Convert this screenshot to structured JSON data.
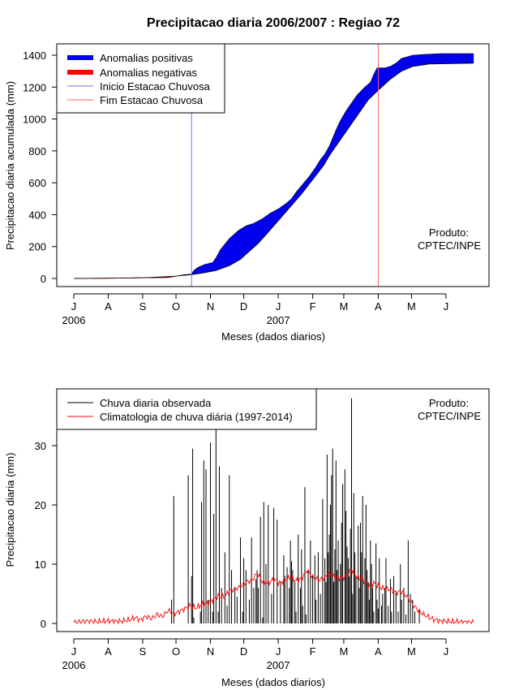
{
  "title": "Precipitacao diaria 2006/2007 : Regiao 72",
  "chart_data": [
    {
      "type": "area",
      "title": "Precipitacao diaria 2006/2007 : Regiao 72",
      "xlabel": "Meses (dados diarios)",
      "ylabel": "Precipitacao diaria acumulada (mm)",
      "ylim": [
        0,
        1440
      ],
      "yticks": [
        0,
        200,
        400,
        600,
        800,
        1000,
        1200,
        1400
      ],
      "month_ticks": [
        "J",
        "A",
        "S",
        "O",
        "N",
        "D",
        "J",
        "F",
        "M",
        "A",
        "M",
        "J"
      ],
      "year_labels": [
        "2006",
        "2007"
      ],
      "grid": false,
      "legend_position": "top-left",
      "legend": [
        "Anomalias positivas",
        "Anomalias negativas",
        "Inicio Estacao Chuvosa",
        "Fim Estacao Chuvosa"
      ],
      "annotation": [
        "Produto:",
        "CPTEC/INPE"
      ],
      "colors": {
        "positive": "#0000ee",
        "negative": "#ff0000",
        "onset": "#6f6fff",
        "end": "#ff5a5a"
      },
      "onset_day": 106,
      "end_day": 274,
      "series": [
        {
          "name": "observada",
          "points": [
            [
              0,
              0
            ],
            [
              30,
              1
            ],
            [
              60,
              4
            ],
            [
              85,
              6
            ],
            [
              90,
              12
            ],
            [
              100,
              24
            ],
            [
              106,
              27
            ],
            [
              108,
              50
            ],
            [
              112,
              70
            ],
            [
              118,
              88
            ],
            [
              125,
              100
            ],
            [
              128,
              130
            ],
            [
              132,
              180
            ],
            [
              140,
              250
            ],
            [
              148,
              300
            ],
            [
              155,
              330
            ],
            [
              162,
              345
            ],
            [
              170,
              375
            ],
            [
              177,
              410
            ],
            [
              185,
              440
            ],
            [
              192,
              475
            ],
            [
              196,
              500
            ],
            [
              200,
              540
            ],
            [
              206,
              590
            ],
            [
              212,
              640
            ],
            [
              218,
              700
            ],
            [
              222,
              745
            ],
            [
              226,
              780
            ],
            [
              230,
              830
            ],
            [
              236,
              930
            ],
            [
              240,
              990
            ],
            [
              245,
              1050
            ],
            [
              250,
              1100
            ],
            [
              255,
              1150
            ],
            [
              262,
              1200
            ],
            [
              267,
              1230
            ],
            [
              270,
              1280
            ],
            [
              273,
              1320
            ],
            [
              280,
              1320
            ],
            [
              285,
              1330
            ],
            [
              290,
              1350
            ],
            [
              295,
              1380
            ],
            [
              300,
              1390
            ],
            [
              305,
              1400
            ],
            [
              315,
              1405
            ],
            [
              330,
              1410
            ],
            [
              360,
              1410
            ]
          ]
        },
        {
          "name": "climatologia",
          "points": [
            [
              0,
              0
            ],
            [
              40,
              2
            ],
            [
              65,
              5
            ],
            [
              90,
              13
            ],
            [
              106,
              24
            ],
            [
              118,
              36
            ],
            [
              128,
              50
            ],
            [
              140,
              80
            ],
            [
              150,
              120
            ],
            [
              158,
              170
            ],
            [
              166,
              220
            ],
            [
              175,
              290
            ],
            [
              185,
              370
            ],
            [
              195,
              450
            ],
            [
              205,
              530
            ],
            [
              215,
              620
            ],
            [
              225,
              710
            ],
            [
              230,
              770
            ],
            [
              240,
              870
            ],
            [
              250,
              970
            ],
            [
              258,
              1050
            ],
            [
              265,
              1120
            ],
            [
              274,
              1180
            ],
            [
              285,
              1250
            ],
            [
              295,
              1300
            ],
            [
              305,
              1330
            ],
            [
              320,
              1345
            ],
            [
              360,
              1350
            ]
          ]
        }
      ]
    },
    {
      "type": "bar",
      "xlabel": "Meses (dados diarios)",
      "ylabel": "Precipitacao diaria (mm)",
      "ylim": [
        0,
        38
      ],
      "yticks": [
        0,
        10,
        20,
        30
      ],
      "month_ticks": [
        "J",
        "A",
        "S",
        "O",
        "N",
        "D",
        "J",
        "F",
        "M",
        "A",
        "M",
        "J"
      ],
      "year_labels": [
        "2006",
        "2007"
      ],
      "grid": false,
      "legend_position": "top-left",
      "legend": [
        "Chuva diaria observada",
        "Climatologia de chuva diária (1997-2014)"
      ],
      "annotation": [
        "Produto:",
        "CPTEC/INPE"
      ],
      "colors": {
        "observed": "#000000",
        "climatology": "#ff0000"
      },
      "observed": [
        [
          88,
          4
        ],
        [
          90,
          21.5
        ],
        [
          103,
          25
        ],
        [
          106,
          8
        ],
        [
          107,
          29.5
        ],
        [
          108,
          1
        ],
        [
          114,
          2
        ],
        [
          115,
          20.5
        ],
        [
          117,
          27.5
        ],
        [
          119,
          26
        ],
        [
          121,
          4
        ],
        [
          123,
          30.5
        ],
        [
          125,
          2
        ],
        [
          126,
          18.5
        ],
        [
          128,
          33
        ],
        [
          130,
          2
        ],
        [
          131,
          26.5
        ],
        [
          133,
          6
        ],
        [
          136,
          12
        ],
        [
          138,
          3
        ],
        [
          140,
          25
        ],
        [
          142,
          9
        ],
        [
          145,
          6
        ],
        [
          147,
          4.5
        ],
        [
          150,
          14.5
        ],
        [
          152,
          2
        ],
        [
          153,
          11
        ],
        [
          155,
          9
        ],
        [
          158,
          4
        ],
        [
          160,
          14.5
        ],
        [
          162,
          6
        ],
        [
          164,
          7.5
        ],
        [
          165,
          9
        ],
        [
          166,
          6
        ],
        [
          168,
          18
        ],
        [
          170,
          1
        ],
        [
          171,
          20.5
        ],
        [
          173,
          10
        ],
        [
          175,
          20
        ],
        [
          178,
          5
        ],
        [
          180,
          19.5
        ],
        [
          183,
          17.5
        ],
        [
          186,
          7
        ],
        [
          189,
          11.5
        ],
        [
          190,
          8
        ],
        [
          192,
          9.5
        ],
        [
          194,
          6
        ],
        [
          195,
          14
        ],
        [
          196,
          10.5
        ],
        [
          197,
          9
        ],
        [
          199,
          7
        ],
        [
          200,
          2
        ],
        [
          202,
          15
        ],
        [
          204,
          6
        ],
        [
          205,
          12.5
        ],
        [
          206,
          3
        ],
        [
          208,
          23
        ],
        [
          209,
          1.5
        ],
        [
          211,
          9
        ],
        [
          213,
          14
        ],
        [
          215,
          8
        ],
        [
          217,
          11.5
        ],
        [
          218,
          4
        ],
        [
          220,
          12
        ],
        [
          222,
          5
        ],
        [
          224,
          21
        ],
        [
          226,
          11
        ],
        [
          227,
          7
        ],
        [
          228,
          28.5
        ],
        [
          229,
          12
        ],
        [
          230,
          15
        ],
        [
          231,
          20
        ],
        [
          232,
          25
        ],
        [
          233,
          29.5
        ],
        [
          234,
          7
        ],
        [
          235,
          12.5
        ],
        [
          236,
          27.5
        ],
        [
          237,
          9
        ],
        [
          238,
          14
        ],
        [
          240,
          10
        ],
        [
          241,
          17
        ],
        [
          242,
          23.5
        ],
        [
          244,
          26
        ],
        [
          245,
          19
        ],
        [
          246,
          13
        ],
        [
          247,
          11
        ],
        [
          248,
          8
        ],
        [
          249,
          16
        ],
        [
          250,
          38
        ],
        [
          251,
          5
        ],
        [
          252,
          22
        ],
        [
          253,
          12
        ],
        [
          254,
          8
        ],
        [
          256,
          16.5
        ],
        [
          257,
          6
        ],
        [
          258,
          17
        ],
        [
          259,
          12
        ],
        [
          260,
          21.5
        ],
        [
          262,
          11
        ],
        [
          263,
          20
        ],
        [
          264,
          9
        ],
        [
          265,
          7
        ],
        [
          266,
          4
        ],
        [
          267,
          14
        ],
        [
          268,
          10
        ],
        [
          269,
          6
        ],
        [
          270,
          2
        ],
        [
          272,
          13.5
        ],
        [
          273,
          4
        ],
        [
          274,
          2.5
        ],
        [
          275,
          11
        ],
        [
          277,
          3
        ],
        [
          278,
          5
        ],
        [
          280,
          6
        ],
        [
          281,
          11
        ],
        [
          283,
          3
        ],
        [
          285,
          7.5
        ],
        [
          286,
          2
        ],
        [
          288,
          8
        ],
        [
          290,
          5.5
        ],
        [
          292,
          2
        ],
        [
          294,
          10
        ],
        [
          295,
          4
        ],
        [
          297,
          6
        ],
        [
          299,
          1.5
        ],
        [
          301,
          14
        ],
        [
          303,
          5
        ],
        [
          305,
          4
        ],
        [
          307,
          2
        ],
        [
          311,
          2.5
        ]
      ],
      "climatology": [
        [
          0,
          0.2
        ],
        [
          10,
          0.4
        ],
        [
          20,
          0.3
        ],
        [
          30,
          0.4
        ],
        [
          40,
          0.3
        ],
        [
          50,
          0.6
        ],
        [
          55,
          1
        ],
        [
          60,
          0.6
        ],
        [
          65,
          1.2
        ],
        [
          70,
          0.8
        ],
        [
          75,
          1.5
        ],
        [
          80,
          1.2
        ],
        [
          85,
          2.2
        ],
        [
          90,
          1.6
        ],
        [
          95,
          2
        ],
        [
          100,
          2.5
        ],
        [
          105,
          3
        ],
        [
          110,
          2.6
        ],
        [
          115,
          3.2
        ],
        [
          120,
          3.4
        ],
        [
          125,
          4
        ],
        [
          130,
          4.6
        ],
        [
          135,
          4.4
        ],
        [
          140,
          5.5
        ],
        [
          145,
          5.8
        ],
        [
          150,
          6.2
        ],
        [
          155,
          7
        ],
        [
          160,
          7.2
        ],
        [
          165,
          8.5
        ],
        [
          170,
          7
        ],
        [
          175,
          6.8
        ],
        [
          180,
          7.5
        ],
        [
          185,
          6.8
        ],
        [
          190,
          7.3
        ],
        [
          195,
          7.8
        ],
        [
          200,
          7.2
        ],
        [
          205,
          7.6
        ],
        [
          210,
          9
        ],
        [
          215,
          7.8
        ],
        [
          220,
          7.4
        ],
        [
          225,
          7.5
        ],
        [
          230,
          8.5
        ],
        [
          235,
          7.8
        ],
        [
          240,
          7.6
        ],
        [
          245,
          8
        ],
        [
          250,
          9.2
        ],
        [
          255,
          7.8
        ],
        [
          260,
          7.4
        ],
        [
          265,
          6.4
        ],
        [
          270,
          6.8
        ],
        [
          275,
          6.2
        ],
        [
          280,
          5.8
        ],
        [
          285,
          5.8
        ],
        [
          290,
          5.2
        ],
        [
          295,
          5.4
        ],
        [
          300,
          4.5
        ],
        [
          305,
          3.2
        ],
        [
          310,
          2.2
        ],
        [
          315,
          1.5
        ],
        [
          320,
          1
        ],
        [
          325,
          0.6
        ],
        [
          330,
          0.4
        ],
        [
          340,
          0.3
        ],
        [
          350,
          0.2
        ],
        [
          360,
          0.2
        ]
      ]
    }
  ]
}
